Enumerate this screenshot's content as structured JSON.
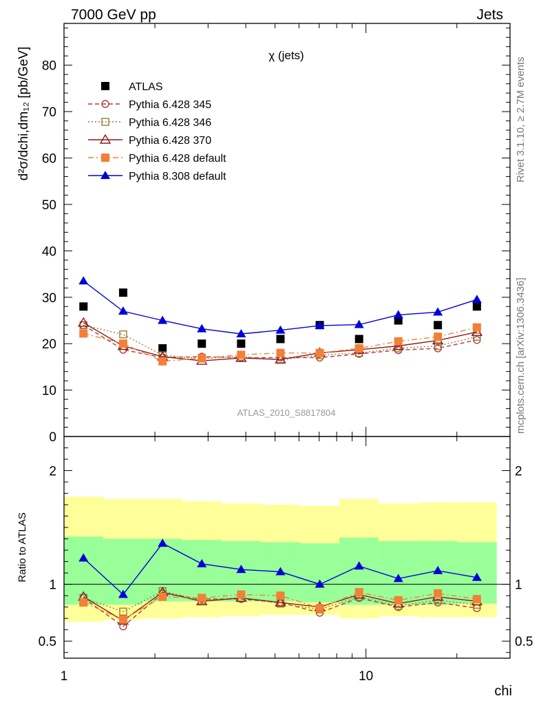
{
  "header": {
    "left": "7000 GeV pp",
    "right": "Jets"
  },
  "side_labels": {
    "top": "Rivet 3.1.10, ≥ 2.7M events",
    "bottom": "mcplots.cern.ch [arXiv:1306.3436]"
  },
  "chart_data": {
    "type": "scatter",
    "title": "χ (jets)",
    "analysis_label": "ATLAS_2010_S8817804",
    "xlabel": "chi",
    "ylabel": "d²σ/dchi,dm₁₂ [pb/GeV]",
    "ratio_ylabel": "Ratio to ATLAS",
    "x_scale": "log",
    "xlim": [
      1,
      30
    ],
    "ylim": [
      0,
      89
    ],
    "ratio_ylim": [
      0.35,
      2.3
    ],
    "x_ticks": [
      {
        "v": 1,
        "label": "1"
      },
      {
        "v": 10,
        "label": "10"
      }
    ],
    "y_ticks": [
      {
        "v": 0,
        "label": "0"
      },
      {
        "v": 10,
        "label": "10"
      },
      {
        "v": 20,
        "label": "20"
      },
      {
        "v": 30,
        "label": "30"
      },
      {
        "v": 40,
        "label": "40"
      },
      {
        "v": 50,
        "label": "50"
      },
      {
        "v": 60,
        "label": "60"
      },
      {
        "v": 70,
        "label": "70"
      },
      {
        "v": 80,
        "label": "80"
      }
    ],
    "ratio_ticks": [
      {
        "v": 0.5,
        "label": "0.5"
      },
      {
        "v": 1,
        "label": "1"
      },
      {
        "v": 2,
        "label": "2"
      }
    ],
    "bin_edges": [
      1,
      1.35,
      1.82,
      2.46,
      3.32,
      4.48,
      6.05,
      8.17,
      11.0,
      14.9,
      20.1,
      27.1
    ],
    "x": [
      1.16,
      1.57,
      2.12,
      2.86,
      3.86,
      5.21,
      7.03,
      9.49,
      12.8,
      17.3,
      23.3
    ],
    "legend_position": "top-left",
    "series": [
      {
        "name": "ATLAS",
        "color": "#000000",
        "marker": "filled-square",
        "line": "none",
        "values": [
          28,
          31,
          19,
          20,
          20,
          21,
          24,
          21,
          25,
          24,
          28
        ],
        "ratio": [
          1,
          1,
          1,
          1,
          1,
          1,
          1,
          1,
          1,
          1,
          1
        ]
      },
      {
        "name": "Pythia 6.428 345",
        "color": "#b03a3a",
        "marker": "open-circle",
        "line": "dashed",
        "values": [
          24.0,
          18.7,
          17.0,
          17.2,
          17.0,
          17.0,
          17.0,
          17.8,
          18.6,
          19.0,
          20.8
        ],
        "ratio": [
          0.88,
          0.63,
          0.92,
          0.87,
          0.87,
          0.84,
          0.75,
          0.88,
          0.8,
          0.84,
          0.79
        ]
      },
      {
        "name": "Pythia 6.428 346",
        "color": "#9a7a32",
        "marker": "open-square",
        "line": "dotted",
        "values": [
          24.0,
          22.0,
          17.5,
          16.8,
          17.2,
          16.5,
          17.5,
          18.0,
          19.0,
          19.5,
          21.5
        ],
        "ratio": [
          0.88,
          0.76,
          0.94,
          0.86,
          0.88,
          0.83,
          0.78,
          0.89,
          0.81,
          0.86,
          0.82
        ]
      },
      {
        "name": "Pythia 6.428 370",
        "color": "#8b1a1a",
        "marker": "open-triangle",
        "line": "solid",
        "values": [
          24.5,
          19.5,
          17.2,
          16.3,
          16.9,
          16.6,
          18.0,
          18.7,
          19.5,
          20.7,
          22.5
        ],
        "ratio": [
          0.89,
          0.68,
          0.93,
          0.85,
          0.88,
          0.84,
          0.8,
          0.91,
          0.83,
          0.89,
          0.85
        ]
      },
      {
        "name": "Pythia 6.428 default",
        "color": "#f47f36",
        "marker": "filled-square",
        "line": "dashdot",
        "values": [
          22.2,
          20.0,
          16.2,
          16.9,
          17.6,
          18.0,
          18.0,
          19.0,
          20.5,
          21.5,
          23.5
        ],
        "ratio": [
          0.84,
          0.69,
          0.89,
          0.88,
          0.91,
          0.9,
          0.79,
          0.93,
          0.86,
          0.92,
          0.87
        ]
      },
      {
        "name": "Pythia 8.308 default",
        "color": "#0000d8",
        "marker": "filled-triangle",
        "line": "solid",
        "values": [
          33.5,
          27.0,
          25.0,
          23.2,
          22.1,
          22.9,
          23.9,
          24.1,
          26.2,
          26.8,
          29.5
        ],
        "ratio": [
          1.23,
          0.91,
          1.36,
          1.18,
          1.13,
          1.11,
          1.0,
          1.16,
          1.05,
          1.12,
          1.06
        ]
      }
    ],
    "uncertainty_bands": {
      "outer_color": "#ffff99",
      "inner_color": "#99ff99",
      "outer_low": [
        0.67,
        0.69,
        0.7,
        0.71,
        0.72,
        0.73,
        0.73,
        0.7,
        0.72,
        0.71,
        0.71
      ],
      "outer_high": [
        1.77,
        1.75,
        1.75,
        1.73,
        1.71,
        1.7,
        1.69,
        1.75,
        1.71,
        1.72,
        1.72
      ],
      "inner_low": [
        0.82,
        0.82,
        0.85,
        0.85,
        0.85,
        0.85,
        0.84,
        0.82,
        0.82,
        0.82,
        0.83
      ],
      "inner_high": [
        1.42,
        1.4,
        1.4,
        1.39,
        1.38,
        1.37,
        1.36,
        1.41,
        1.38,
        1.38,
        1.37
      ]
    }
  }
}
